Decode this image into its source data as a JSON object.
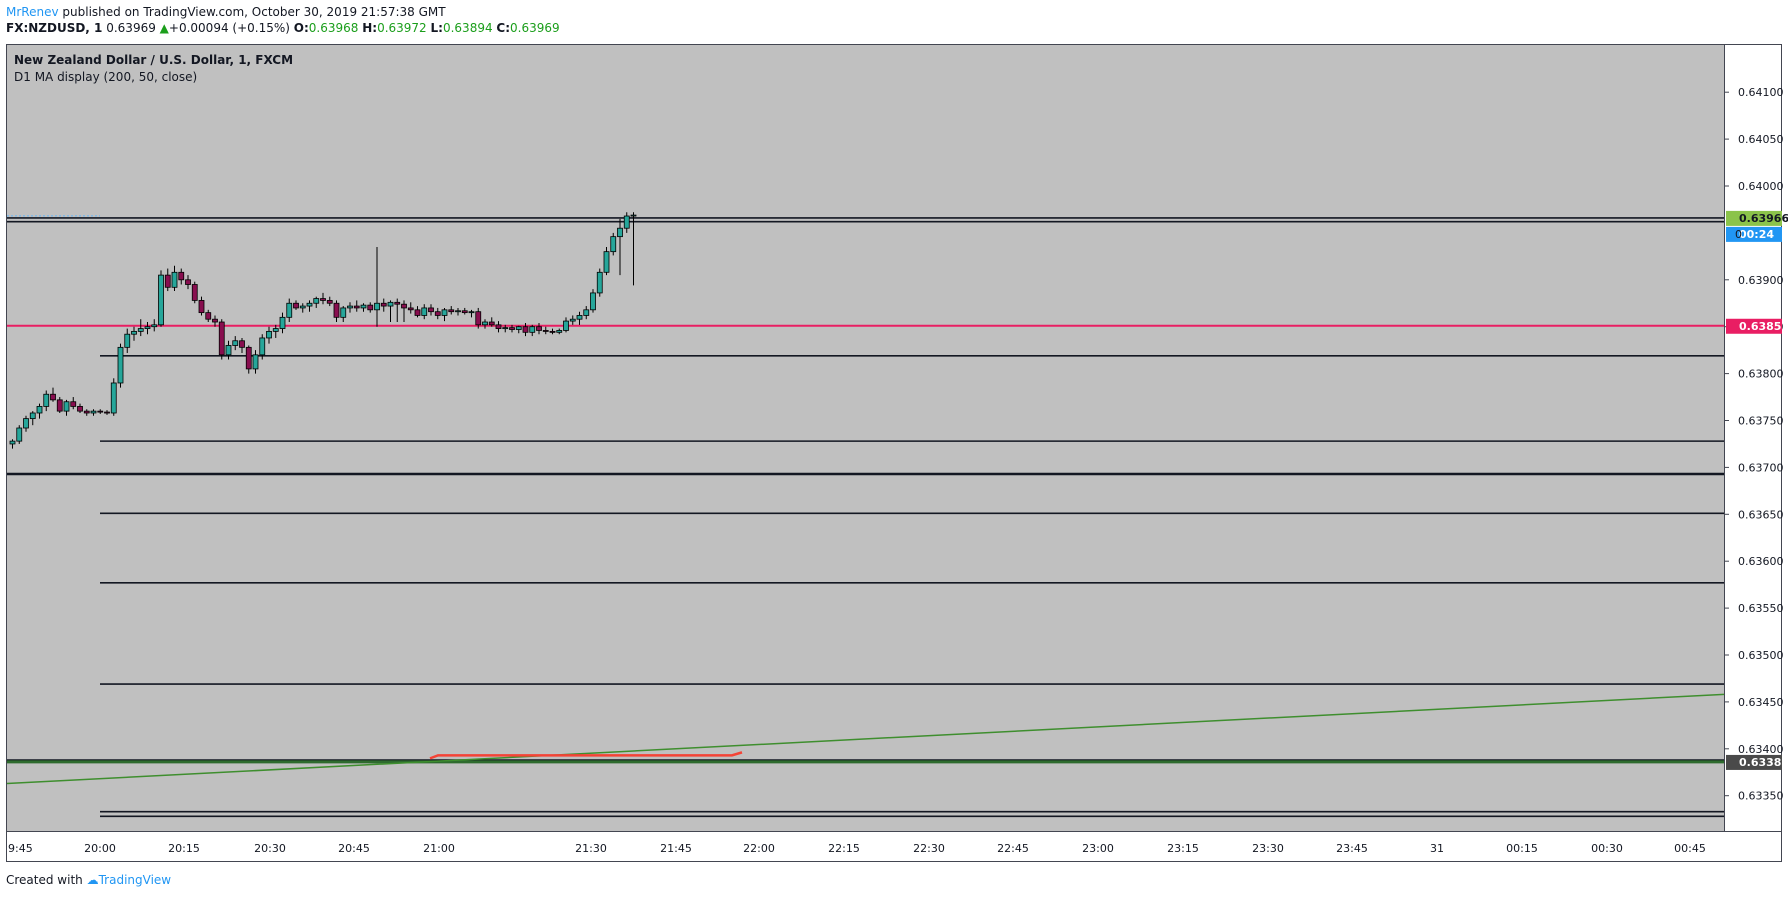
{
  "header": {
    "author": "MrRenev",
    "published_text": "published on TradingView.com, October 30, 2019 21:57:38 GMT",
    "symbol": "FX:NZDUSD, 1",
    "last": "0.63969",
    "change": "+0.00094 (+0.15%)",
    "open_label": "O:",
    "open": "0.63968",
    "high_label": "H:",
    "high": "0.63972",
    "low_label": "L:",
    "low": "0.63894",
    "close_label": "C:",
    "close": "0.63969"
  },
  "legend": {
    "title": "New Zealand Dollar / U.S. Dollar, 1, FXCM",
    "indicator": "D1 MA display (200, 50, close)"
  },
  "footer": {
    "created_with": "Created with",
    "brand": "TradingView"
  },
  "colors": {
    "background": "#c0c0c0",
    "up_candle": "#26a69a",
    "down_candle": "#880e4f",
    "pink_line": "#e91e63",
    "green_line": "#3e8e2e",
    "green_flat": "#2e6b2e",
    "red_ma": "#f44336"
  },
  "chart_data": {
    "type": "candlestick",
    "symbol": "NZDUSD",
    "timeframe": "1",
    "y_axis": {
      "range": [
        0.6332,
        0.6418
      ],
      "ticks": [
        "0.64100",
        "0.64050",
        "0.64000",
        "0.63900",
        "0.63850",
        "0.63800",
        "0.63750",
        "0.63700",
        "0.63650",
        "0.63600",
        "0.63550",
        "0.63500",
        "0.63450",
        "0.63400",
        "0.63350"
      ]
    },
    "x_axis": {
      "ticks": [
        "9:45",
        "20:00",
        "20:15",
        "20:30",
        "20:45",
        "21:00",
        "21:30",
        "21:45",
        "22:00",
        "22:15",
        "22:30",
        "22:45",
        "23:00",
        "23:15",
        "23:30",
        "23:45",
        "31",
        "00:15",
        "00:30",
        "00:45"
      ]
    },
    "price_badges": [
      {
        "label": "0.63966",
        "color": "#8bc34a",
        "text_color": "#131722"
      },
      {
        "label": "00:24",
        "color": "#2196f3",
        "text_color": "#ffffff"
      },
      {
        "label": "0.63851",
        "color": "#e91e63",
        "text_color": "#ffffff"
      },
      {
        "label": "0.63386",
        "color": "#4a4a4a",
        "text_color": "#ffffff"
      }
    ],
    "horizontal_levels": [
      {
        "price": 0.63966,
        "color": "#131722",
        "full": true
      },
      {
        "price": 0.63962,
        "color": "#131722",
        "full": true
      },
      {
        "price": 0.63851,
        "color": "#e91e63",
        "full": true
      },
      {
        "price": 0.63819,
        "color": "#131722",
        "full": false
      },
      {
        "price": 0.63728,
        "color": "#131722",
        "full": false
      },
      {
        "price": 0.63693,
        "color": "#131722",
        "full": true
      },
      {
        "price": 0.63651,
        "color": "#131722",
        "full": false
      },
      {
        "price": 0.63577,
        "color": "#131722",
        "full": false
      },
      {
        "price": 0.63469,
        "color": "#131722",
        "full": false
      },
      {
        "price": 0.63388,
        "color": "#131722",
        "full": true
      },
      {
        "price": 0.63386,
        "color": "#2e6b2e",
        "full": true
      },
      {
        "price": 0.63333,
        "color": "#131722",
        "full": false
      },
      {
        "price": 0.63328,
        "color": "#131722",
        "full": false
      }
    ],
    "trend_line": {
      "from_price": 0.63363,
      "to_price": 0.63458,
      "color": "#3e8e2e"
    },
    "ma_line": {
      "price": 0.63393,
      "color": "#f44336"
    },
    "candles": [
      [
        0.63725,
        0.6373,
        0.6372,
        0.63728
      ],
      [
        0.63728,
        0.63745,
        0.63725,
        0.63742
      ],
      [
        0.63742,
        0.63755,
        0.63738,
        0.63752
      ],
      [
        0.63752,
        0.6376,
        0.63745,
        0.63758
      ],
      [
        0.63758,
        0.63768,
        0.63752,
        0.63765
      ],
      [
        0.63765,
        0.63782,
        0.6376,
        0.63778
      ],
      [
        0.63778,
        0.63785,
        0.6377,
        0.63772
      ],
      [
        0.63772,
        0.63775,
        0.63758,
        0.6376
      ],
      [
        0.6376,
        0.63772,
        0.63755,
        0.6377
      ],
      [
        0.6377,
        0.63775,
        0.63762,
        0.63765
      ],
      [
        0.63765,
        0.63768,
        0.63758,
        0.6376
      ],
      [
        0.6376,
        0.63762,
        0.63755,
        0.63758
      ],
      [
        0.63758,
        0.63762,
        0.63755,
        0.6376
      ],
      [
        0.6376,
        0.63762,
        0.63757,
        0.63759
      ],
      [
        0.63759,
        0.63761,
        0.63756,
        0.63758
      ],
      [
        0.63758,
        0.63795,
        0.63755,
        0.6379
      ],
      [
        0.6379,
        0.63832,
        0.63785,
        0.63828
      ],
      [
        0.63828,
        0.63848,
        0.63822,
        0.63842
      ],
      [
        0.63842,
        0.6385,
        0.63835,
        0.63845
      ],
      [
        0.63845,
        0.63858,
        0.6384,
        0.63848
      ],
      [
        0.63848,
        0.63855,
        0.63842,
        0.6385
      ],
      [
        0.6385,
        0.63858,
        0.63845,
        0.63852
      ],
      [
        0.63852,
        0.6391,
        0.6385,
        0.63905
      ],
      [
        0.63905,
        0.63912,
        0.63888,
        0.63892
      ],
      [
        0.63892,
        0.63915,
        0.63888,
        0.63908
      ],
      [
        0.63908,
        0.63912,
        0.63895,
        0.639
      ],
      [
        0.639,
        0.63905,
        0.6389,
        0.63895
      ],
      [
        0.63895,
        0.63898,
        0.63875,
        0.63878
      ],
      [
        0.63878,
        0.63882,
        0.63862,
        0.63865
      ],
      [
        0.63865,
        0.63868,
        0.63855,
        0.63858
      ],
      [
        0.63858,
        0.63862,
        0.6385,
        0.63855
      ],
      [
        0.63855,
        0.63858,
        0.63815,
        0.6382
      ],
      [
        0.6382,
        0.63835,
        0.63815,
        0.6383
      ],
      [
        0.6383,
        0.6384,
        0.63825,
        0.63835
      ],
      [
        0.63835,
        0.63838,
        0.63822,
        0.63828
      ],
      [
        0.63828,
        0.6383,
        0.638,
        0.63805
      ],
      [
        0.63805,
        0.63825,
        0.638,
        0.6382
      ],
      [
        0.6382,
        0.63842,
        0.63815,
        0.63838
      ],
      [
        0.63838,
        0.6385,
        0.63832,
        0.63845
      ],
      [
        0.63845,
        0.63852,
        0.63838,
        0.63848
      ],
      [
        0.63848,
        0.63865,
        0.63843,
        0.6386
      ],
      [
        0.6386,
        0.6388,
        0.63855,
        0.63875
      ],
      [
        0.63875,
        0.63878,
        0.63868,
        0.6387
      ],
      [
        0.6387,
        0.63875,
        0.63865,
        0.63872
      ],
      [
        0.63872,
        0.63878,
        0.63866,
        0.63875
      ],
      [
        0.63875,
        0.63882,
        0.6387,
        0.6388
      ],
      [
        0.6388,
        0.63886,
        0.63874,
        0.63878
      ],
      [
        0.63878,
        0.63882,
        0.63872,
        0.63875
      ],
      [
        0.63875,
        0.63878,
        0.63855,
        0.6386
      ],
      [
        0.6386,
        0.63872,
        0.63855,
        0.6387
      ],
      [
        0.6387,
        0.63876,
        0.63865,
        0.63872
      ],
      [
        0.63872,
        0.63878,
        0.63866,
        0.6387
      ],
      [
        0.6387,
        0.63875,
        0.63866,
        0.63873
      ],
      [
        0.63873,
        0.63876,
        0.63865,
        0.63868
      ],
      [
        0.63868,
        0.63935,
        0.6385,
        0.63875
      ],
      [
        0.63875,
        0.6388,
        0.63866,
        0.63872
      ],
      [
        0.63872,
        0.63878,
        0.63855,
        0.63876
      ],
      [
        0.63876,
        0.6388,
        0.63855,
        0.63874
      ],
      [
        0.63874,
        0.63878,
        0.63855,
        0.6387
      ],
      [
        0.6387,
        0.63876,
        0.63864,
        0.63868
      ],
      [
        0.63868,
        0.63872,
        0.6386,
        0.63862
      ],
      [
        0.63862,
        0.63874,
        0.63858,
        0.6387
      ],
      [
        0.6387,
        0.63874,
        0.63862,
        0.63866
      ],
      [
        0.63866,
        0.6387,
        0.63858,
        0.63862
      ],
      [
        0.63862,
        0.6387,
        0.63856,
        0.63868
      ],
      [
        0.63868,
        0.63872,
        0.63863,
        0.63866
      ],
      [
        0.63866,
        0.6387,
        0.63862,
        0.63867
      ],
      [
        0.63867,
        0.6387,
        0.63863,
        0.63865
      ],
      [
        0.63865,
        0.63868,
        0.6386,
        0.63866
      ],
      [
        0.63866,
        0.6387,
        0.63848,
        0.63852
      ],
      [
        0.63852,
        0.63858,
        0.63848,
        0.63855
      ],
      [
        0.63855,
        0.6386,
        0.6385,
        0.63852
      ],
      [
        0.63852,
        0.63856,
        0.63844,
        0.63848
      ],
      [
        0.63848,
        0.63852,
        0.63844,
        0.63849
      ],
      [
        0.63849,
        0.63852,
        0.63844,
        0.63847
      ],
      [
        0.63847,
        0.63851,
        0.63843,
        0.6385
      ],
      [
        0.6385,
        0.63854,
        0.6384,
        0.63844
      ],
      [
        0.63844,
        0.63852,
        0.6384,
        0.6385
      ],
      [
        0.6385,
        0.63854,
        0.63842,
        0.63846
      ],
      [
        0.63846,
        0.6385,
        0.63842,
        0.63845
      ],
      [
        0.63845,
        0.63848,
        0.63842,
        0.63844
      ],
      [
        0.63844,
        0.63848,
        0.63842,
        0.63846
      ],
      [
        0.63846,
        0.6386,
        0.63844,
        0.63856
      ],
      [
        0.63856,
        0.63862,
        0.63852,
        0.63858
      ],
      [
        0.63858,
        0.63866,
        0.63852,
        0.63862
      ],
      [
        0.63862,
        0.63872,
        0.63858,
        0.63868
      ],
      [
        0.63868,
        0.6389,
        0.63865,
        0.63886
      ],
      [
        0.63886,
        0.63912,
        0.63882,
        0.63908
      ],
      [
        0.63908,
        0.63935,
        0.63905,
        0.6393
      ],
      [
        0.6393,
        0.6395,
        0.63926,
        0.63946
      ],
      [
        0.63946,
        0.63965,
        0.63905,
        0.63955
      ],
      [
        0.63955,
        0.63972,
        0.6395,
        0.63968
      ],
      [
        0.63968,
        0.63972,
        0.63894,
        0.63969
      ]
    ]
  }
}
